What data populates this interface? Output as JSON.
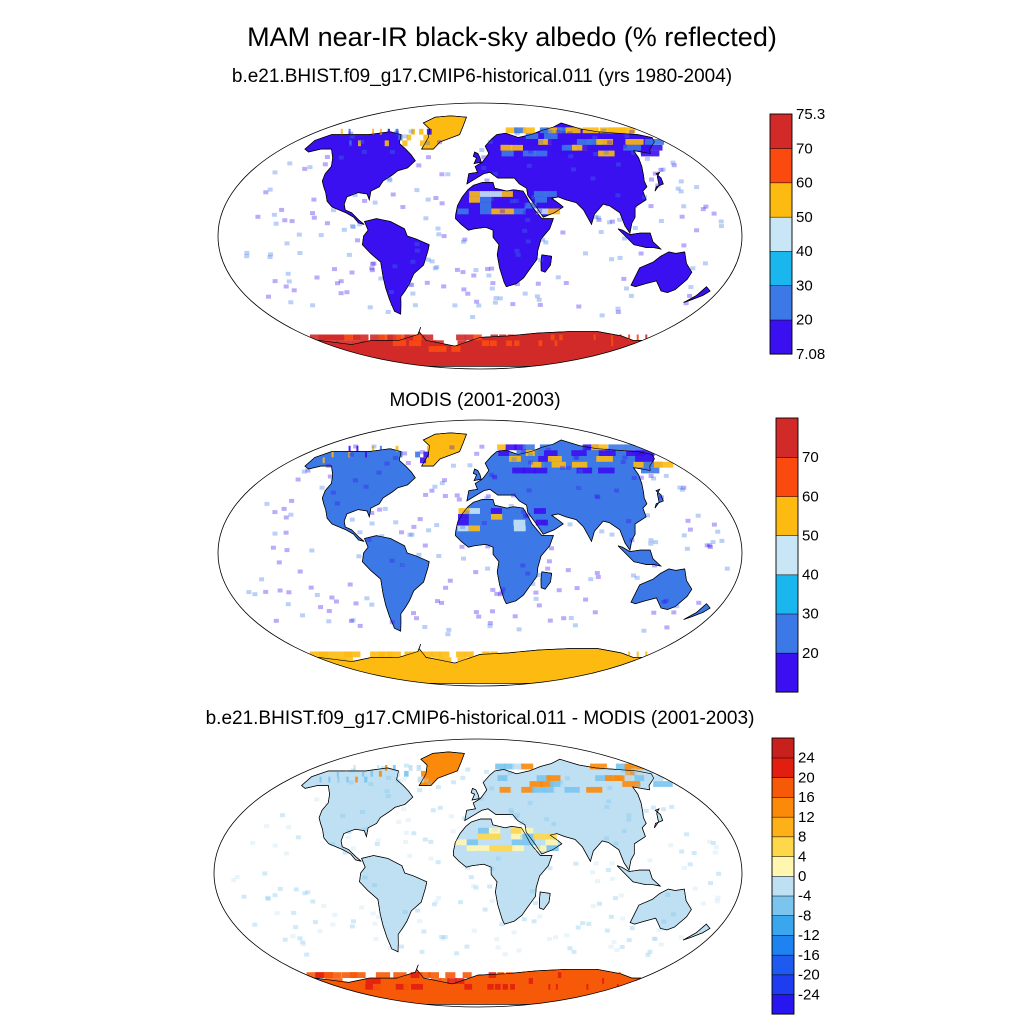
{
  "title": "MAM near-IR black-sky albedo (% reflected)",
  "panels": [
    {
      "title": "b.e21.BHIST.f09_g17.CMIP6-historical.011 (yrs 1980-2004)",
      "colorbar": {
        "colors": [
          "#3a10f0",
          "#3c78e6",
          "#1ab6ee",
          "#c8e6f5",
          "#fdbb12",
          "#fb4a10",
          "#d22a28"
        ],
        "labels": [
          "75.3",
          "70",
          "60",
          "50",
          "40",
          "30",
          "20",
          "7.08"
        ]
      },
      "colors": {
        "ocean": "#ffffff",
        "land_main": "#3a10f0",
        "land_alt": "#3c78e6",
        "desert": "#c8e6f5",
        "desert_alt": "#fdbb12",
        "polar": "#d22a28",
        "polar_edge": "#fb4a10",
        "arctic": "#fdbb12"
      }
    },
    {
      "title": "MODIS (2001-2003)",
      "colorbar": {
        "colors": [
          "#3a10f0",
          "#3c78e6",
          "#1ab6ee",
          "#c8e6f5",
          "#fdbb12",
          "#fb4a10",
          "#d22a28"
        ],
        "labels": [
          "",
          "70",
          "60",
          "50",
          "40",
          "30",
          "20",
          ""
        ]
      },
      "colors": {
        "ocean": "#ffffff",
        "land_main": "#3c78e6",
        "land_alt": "#3a10f0",
        "desert": "#fdbb12",
        "desert_alt": "#c8e6f5",
        "polar": "#fdbb12",
        "polar_edge": "#fdbb12",
        "arctic": "#fdbb12"
      }
    },
    {
      "title": "b.e21.BHIST.f09_g17.CMIP6-historical.011 - MODIS (2001-2003)",
      "colorbar": {
        "colors": [
          "#2816f0",
          "#1e3cf0",
          "#1e5af0",
          "#1e82f0",
          "#3aa6ee",
          "#7ac4ee",
          "#bfe0f3",
          "#fff6b0",
          "#fed84a",
          "#fdb018",
          "#fb8a0a",
          "#f65a08",
          "#e21e10",
          "#c8201c"
        ],
        "labels": [
          "24",
          "20",
          "16",
          "12",
          "8",
          "4",
          "0",
          "-4",
          "-8",
          "-12",
          "-16",
          "-20",
          "-24"
        ]
      },
      "colors": {
        "ocean": "#ffffff",
        "land_main": "#bfe0f3",
        "land_alt": "#7ac4ee",
        "desert": "#fff6b0",
        "desert_alt": "#fed84a",
        "polar": "#f65a08",
        "polar_edge": "#e21e10",
        "arctic": "#fb8a0a"
      }
    }
  ]
}
